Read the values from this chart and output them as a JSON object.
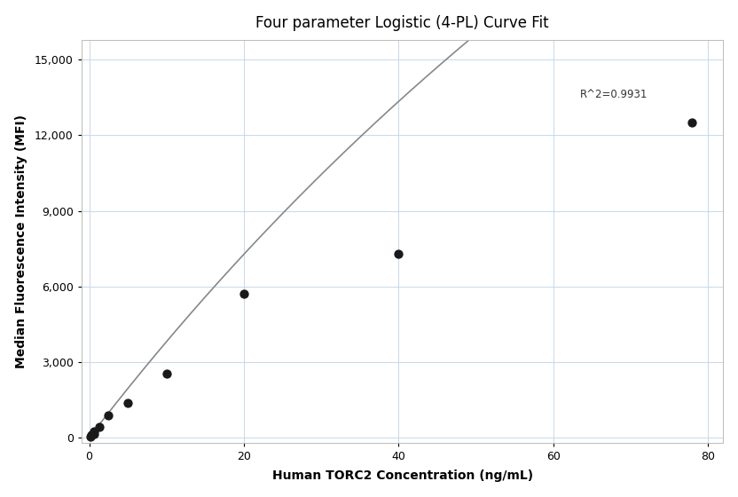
{
  "title": "Four parameter Logistic (4-PL) Curve Fit",
  "xlabel": "Human TORC2 Concentration (ng/mL)",
  "ylabel": "Median Fluorescence Intensity (MFI)",
  "scatter_x": [
    0.16,
    0.31,
    0.63,
    0.63,
    1.25,
    2.5,
    5.0,
    10.0,
    20.0,
    40.0,
    78.0
  ],
  "scatter_y": [
    50,
    100,
    150,
    250,
    450,
    900,
    1400,
    2550,
    5700,
    7300,
    12500
  ],
  "r_squared": "R^2=0.9931",
  "r2_x": 63.5,
  "r2_y": 13400,
  "xlim": [
    -1,
    82
  ],
  "ylim": [
    -200,
    15800
  ],
  "yticks": [
    0,
    3000,
    6000,
    9000,
    12000,
    15000
  ],
  "xticks": [
    0,
    20,
    40,
    60,
    80
  ],
  "dot_color": "#1a1a1a",
  "dot_size": 55,
  "curve_color": "#888888",
  "curve_linewidth": 1.2,
  "grid_color": "#c8d8e8",
  "background_color": "#ffffff",
  "title_fontsize": 12,
  "axis_label_fontsize": 10,
  "tick_fontsize": 9
}
